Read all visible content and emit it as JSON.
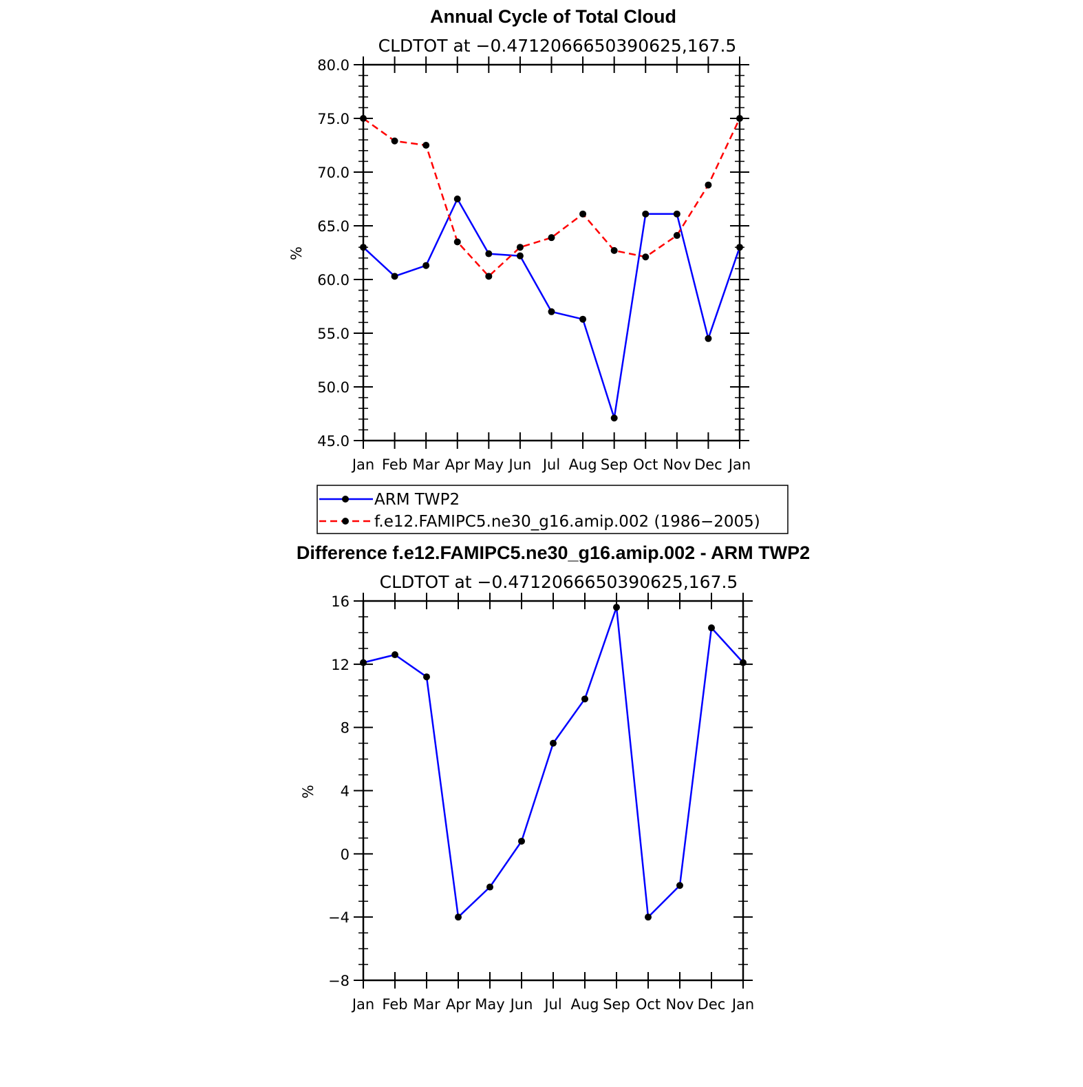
{
  "colors": {
    "obs": "#0000ff",
    "model": "#ff0000",
    "marker": "#000000",
    "axis": "#000000"
  },
  "chart_data": [
    {
      "type": "line",
      "title": "Annual Cycle of Total Cloud",
      "subtitle": "CLDTOT at −0.4712066650390625,167.5",
      "ylabel": "%",
      "ylim": [
        45,
        80
      ],
      "yticks": [
        45,
        50,
        55,
        60,
        65,
        70,
        75,
        80
      ],
      "ytick_labels": [
        "45.0",
        "50.0",
        "55.0",
        "60.0",
        "65.0",
        "70.0",
        "75.0",
        "80.0"
      ],
      "categories": [
        "Jan",
        "Feb",
        "Mar",
        "Apr",
        "May",
        "Jun",
        "Jul",
        "Aug",
        "Sep",
        "Oct",
        "Nov",
        "Dec",
        "Jan"
      ],
      "series": [
        {
          "name": "ARM TWP2",
          "style": "solid",
          "color": "#0000ff",
          "values": [
            63.0,
            60.3,
            61.3,
            67.5,
            62.4,
            62.2,
            57.0,
            56.3,
            47.1,
            66.1,
            66.1,
            54.5,
            63.0
          ]
        },
        {
          "name": "f.e12.FAMIPC5.ne30_g16.amip.002 (1986−2005)",
          "style": "dashed",
          "color": "#ff0000",
          "values": [
            75.0,
            72.9,
            72.5,
            63.5,
            60.3,
            63.0,
            63.9,
            66.1,
            62.7,
            62.1,
            64.1,
            68.8,
            75.0
          ]
        }
      ],
      "legend": {
        "position": "below"
      }
    },
    {
      "type": "line",
      "title": "Difference f.e12.FAMIPC5.ne30_g16.amip.002 - ARM TWP2",
      "subtitle": "CLDTOT at −0.4712066650390625,167.5",
      "ylabel": "%",
      "ylim": [
        -8,
        16
      ],
      "yticks": [
        -8,
        -4,
        0,
        4,
        8,
        12,
        16
      ],
      "ytick_labels": [
        "−8",
        "−4",
        "0",
        "4",
        "8",
        "12",
        "16"
      ],
      "categories": [
        "Jan",
        "Feb",
        "Mar",
        "Apr",
        "May",
        "Jun",
        "Jul",
        "Aug",
        "Sep",
        "Oct",
        "Nov",
        "Dec",
        "Jan"
      ],
      "series": [
        {
          "style": "solid",
          "color": "#0000ff",
          "values": [
            12.1,
            12.6,
            11.2,
            -4.0,
            -2.1,
            0.8,
            7.0,
            9.8,
            15.6,
            -4.0,
            -2.0,
            14.3,
            12.1
          ]
        }
      ]
    }
  ]
}
